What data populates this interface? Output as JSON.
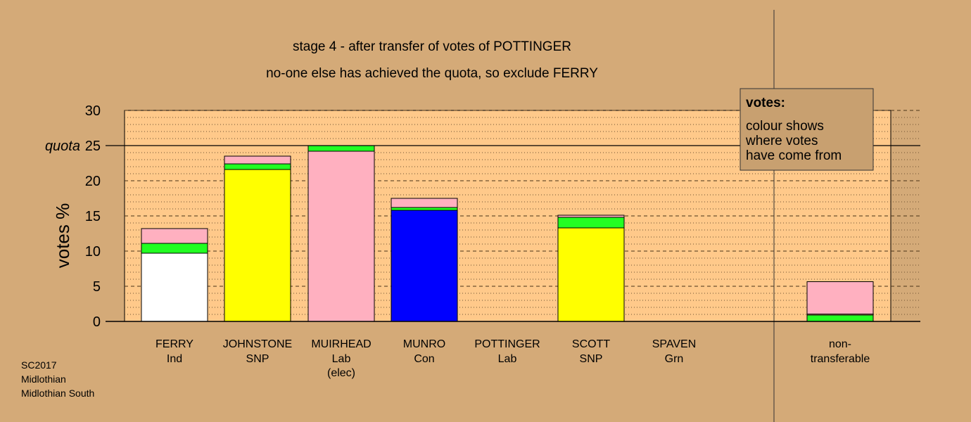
{
  "chart_data": {
    "type": "bar",
    "stacked": true,
    "title": "stage 4 - after transfer of votes of POTTINGER",
    "subtitle": "no-one else has achieved the quota, so exclude FERRY",
    "ylabel": "votes %",
    "ylim": [
      0,
      30
    ],
    "yticks": [
      "0",
      "5",
      "10",
      "15",
      "20",
      "25",
      "30"
    ],
    "quota_label": "quota",
    "quota_value": 25,
    "grid": true,
    "legend": {
      "placement": "top-right",
      "title": "votes:",
      "lines": [
        "colour shows",
        "where votes",
        "have come from"
      ]
    },
    "categories": [
      {
        "name": "FERRY",
        "party": "Ind",
        "note": ""
      },
      {
        "name": "JOHNSTONE",
        "party": "SNP",
        "note": ""
      },
      {
        "name": "MUIRHEAD",
        "party": "Lab",
        "note": "(elec)"
      },
      {
        "name": "MUNRO",
        "party": "Con",
        "note": ""
      },
      {
        "name": "POTTINGER",
        "party": "Lab",
        "note": ""
      },
      {
        "name": "SCOTT",
        "party": "SNP",
        "note": ""
      },
      {
        "name": "SPAVEN",
        "party": "Grn",
        "note": ""
      }
    ],
    "nontransferable_label": [
      "non-",
      "transferable"
    ],
    "bars": [
      {
        "segments": [
          {
            "value": 9.7,
            "color": "#ffffff"
          },
          {
            "value": 1.4,
            "color": "#22ff22"
          },
          {
            "value": 2.1,
            "color": "#ffb0c0"
          }
        ]
      },
      {
        "segments": [
          {
            "value": 21.6,
            "color": "#ffff00"
          },
          {
            "value": 0.8,
            "color": "#22ff22"
          },
          {
            "value": 1.1,
            "color": "#ffb0c0"
          }
        ]
      },
      {
        "segments": [
          {
            "value": 24.2,
            "color": "#ffb0c0"
          },
          {
            "value": 0.8,
            "color": "#22ff22"
          }
        ]
      },
      {
        "segments": [
          {
            "value": 15.8,
            "color": "#0000ff"
          },
          {
            "value": 0.4,
            "color": "#22ff22"
          },
          {
            "value": 1.3,
            "color": "#ffb0c0"
          }
        ]
      },
      {
        "segments": []
      },
      {
        "segments": [
          {
            "value": 13.3,
            "color": "#ffff00"
          },
          {
            "value": 1.5,
            "color": "#22ff22"
          },
          {
            "value": 0.3,
            "color": "#ffb0c0"
          }
        ]
      },
      {
        "segments": []
      }
    ],
    "nontransferable": {
      "segments": [
        {
          "value": 0.9,
          "color": "#22ff22"
        },
        {
          "value": 0.15,
          "color": "#d4aa78"
        },
        {
          "value": 4.6,
          "color": "#ffb0c0"
        }
      ]
    },
    "colors": {
      "background": "#d4aa78",
      "plot_area": "#ffc98a",
      "legend_box": "#c8a070"
    }
  },
  "footer": {
    "line1": "SC2017",
    "line2": "Midlothian",
    "line3": "Midlothian South"
  }
}
